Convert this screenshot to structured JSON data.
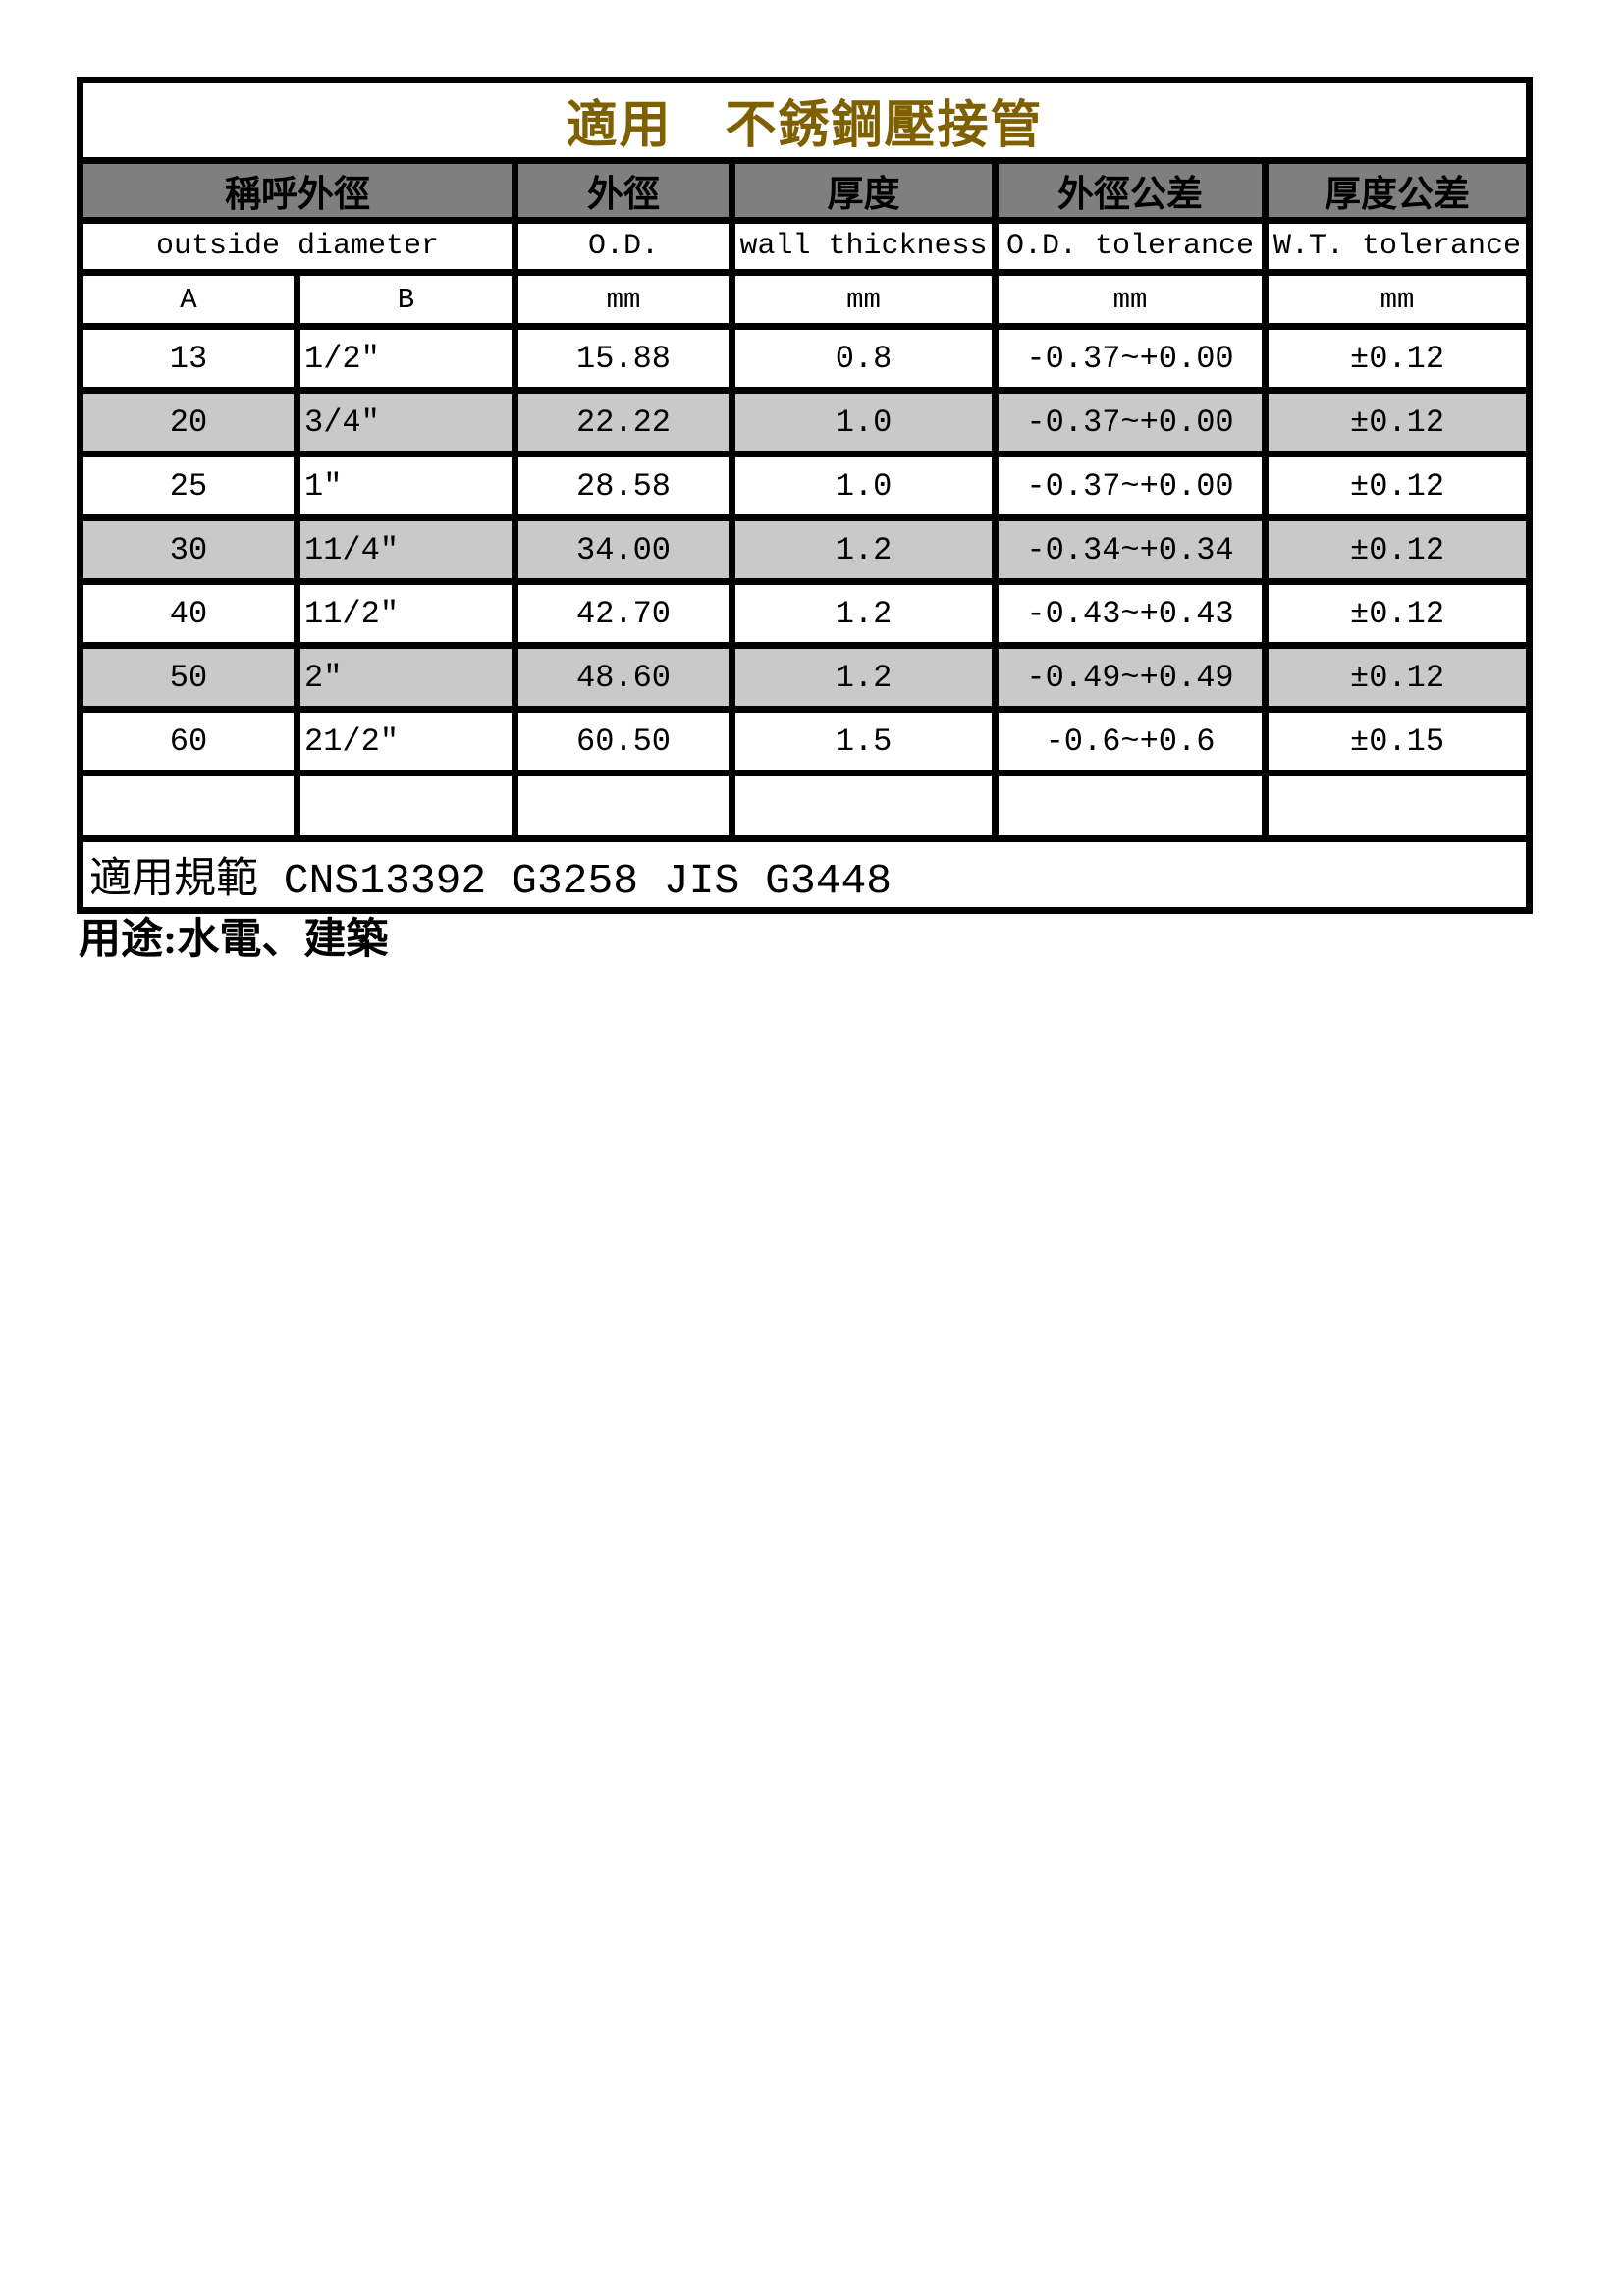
{
  "title": "適用　不銹鋼壓接管",
  "header": {
    "cn": {
      "nominal_od": "稱呼外徑",
      "od": "外徑",
      "thickness": "厚度",
      "od_tolerance": "外徑公差",
      "thickness_tolerance": "厚度公差"
    },
    "en": {
      "nominal_od": "outside diameter",
      "od": "O.D.",
      "thickness": "wall thickness",
      "od_tolerance": "O.D. tolerance",
      "thickness_tolerance": "W.T. tolerance"
    },
    "sub": {
      "a": "A",
      "b": "B",
      "od_unit": "mm",
      "thickness_unit": "mm",
      "od_tol_unit": "mm",
      "thickness_tol_unit": "mm"
    }
  },
  "rows": [
    {
      "a": "13",
      "b": "1/2\"",
      "od": "15.88",
      "wt": "0.8",
      "od_tol": "-0.37~+0.00",
      "wt_tol": "±0.12",
      "shaded": false
    },
    {
      "a": "20",
      "b": "3/4\"",
      "od": "22.22",
      "wt": "1.0",
      "od_tol": "-0.37~+0.00",
      "wt_tol": "±0.12",
      "shaded": true
    },
    {
      "a": "25",
      "b": "1\"",
      "od": "28.58",
      "wt": "1.0",
      "od_tol": "-0.37~+0.00",
      "wt_tol": "±0.12",
      "shaded": false
    },
    {
      "a": "30",
      "b": "11/4\"",
      "od": "34.00",
      "wt": "1.2",
      "od_tol": "-0.34~+0.34",
      "wt_tol": "±0.12",
      "shaded": true
    },
    {
      "a": "40",
      "b": "11/2\"",
      "od": "42.70",
      "wt": "1.2",
      "od_tol": "-0.43~+0.43",
      "wt_tol": "±0.12",
      "shaded": false
    },
    {
      "a": "50",
      "b": "2\"",
      "od": "48.60",
      "wt": "1.2",
      "od_tol": "-0.49~+0.49",
      "wt_tol": "±0.12",
      "shaded": true
    },
    {
      "a": "60",
      "b": "21/2\"",
      "od": "60.50",
      "wt": "1.5",
      "od_tol": "-0.6~+0.6",
      "wt_tol": "±0.15",
      "shaded": false
    },
    {
      "a": "",
      "b": "",
      "od": "",
      "wt": "",
      "od_tol": "",
      "wt_tol": "",
      "shaded": false
    }
  ],
  "footer": "適用規範 CNS13392 G3258 JIS G3448",
  "usage_note": "用途:水電、建築",
  "colors": {
    "title": "#7f6000",
    "header_bg": "#7f7f7f",
    "row_alt_bg": "#c9c9c9",
    "border": "#000000"
  }
}
